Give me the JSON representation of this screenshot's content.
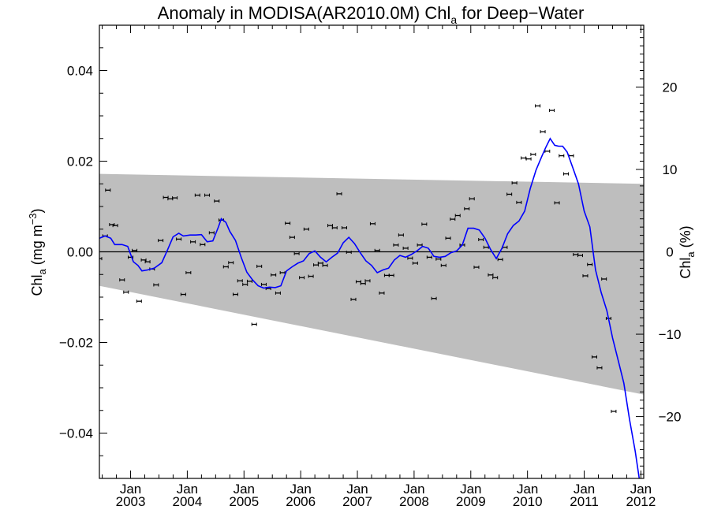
{
  "chart_data": {
    "type": "line",
    "title_main": "Anomaly in MODISA(AR2010.0M) Chl",
    "title_sub": "a",
    "title_rest": " for Deep−Water",
    "ylabel_left_main": "Chl",
    "ylabel_left_sub": "a",
    "ylabel_left_rest": " (mg m",
    "ylabel_left_sup": "−3",
    "ylabel_left_close": ")",
    "ylabel_right_main": "Chl",
    "ylabel_right_sub": "a",
    "ylabel_right_rest": " (%)",
    "xlim": [
      2002.45,
      2012.05
    ],
    "ylim_left": [
      -0.05,
      0.05
    ],
    "ylim_right": [
      -27.5,
      27.5
    ],
    "yticks_left": [
      {
        "value": 0.04,
        "label": "0.04"
      },
      {
        "value": 0.02,
        "label": "0.02"
      },
      {
        "value": 0.0,
        "label": "0.00"
      },
      {
        "value": -0.02,
        "label": "−0.02"
      },
      {
        "value": -0.04,
        "label": "−0.04"
      }
    ],
    "yticks_right": [
      {
        "value": 20,
        "label": "20"
      },
      {
        "value": 10,
        "label": "10"
      },
      {
        "value": 0,
        "label": "0"
      },
      {
        "value": -10,
        "label": "−10"
      },
      {
        "value": -20,
        "label": "−20"
      }
    ],
    "xticks": [
      {
        "value": 2003.0,
        "month": "Jan",
        "year": "2003"
      },
      {
        "value": 2004.0,
        "month": "Jan",
        "year": "2004"
      },
      {
        "value": 2005.0,
        "month": "Jan",
        "year": "2005"
      },
      {
        "value": 2006.0,
        "month": "Jan",
        "year": "2006"
      },
      {
        "value": 2007.0,
        "month": "Jan",
        "year": "2007"
      },
      {
        "value": 2008.0,
        "month": "Jan",
        "year": "2008"
      },
      {
        "value": 2009.0,
        "month": "Jan",
        "year": "2009"
      },
      {
        "value": 2010.0,
        "month": "Jan",
        "year": "2010"
      },
      {
        "value": 2011.0,
        "month": "Jan",
        "year": "2011"
      },
      {
        "value": 2012.0,
        "month": "Jan",
        "year": "2012"
      }
    ],
    "shaded_band": {
      "color": "#bebebe",
      "upper": [
        [
          2002.45,
          0.0172
        ],
        [
          2012.05,
          0.015
        ]
      ],
      "lower": [
        [
          2002.45,
          -0.0075
        ],
        [
          2012.05,
          -0.0315
        ]
      ]
    },
    "zero_line": 0,
    "series": [
      {
        "type": "line",
        "color": "#0000ff",
        "points": [
          [
            2002.45,
            0.003
          ],
          [
            2002.55,
            0.0035
          ],
          [
            2002.65,
            0.003
          ],
          [
            2002.72,
            0.0016
          ],
          [
            2002.85,
            0.0016
          ],
          [
            2002.95,
            0.0012
          ],
          [
            2003.05,
            -0.0022
          ],
          [
            2003.13,
            -0.003
          ],
          [
            2003.2,
            -0.0042
          ],
          [
            2003.3,
            -0.004
          ],
          [
            2003.42,
            -0.0036
          ],
          [
            2003.55,
            -0.0024
          ],
          [
            2003.65,
            0.0004
          ],
          [
            2003.75,
            0.0033
          ],
          [
            2003.85,
            0.0041
          ],
          [
            2003.93,
            0.0035
          ],
          [
            2004.05,
            0.0037
          ],
          [
            2004.15,
            0.0037
          ],
          [
            2004.25,
            0.0038
          ],
          [
            2004.35,
            0.0022
          ],
          [
            2004.45,
            0.0024
          ],
          [
            2004.55,
            0.0055
          ],
          [
            2004.6,
            0.0073
          ],
          [
            2004.68,
            0.0065
          ],
          [
            2004.75,
            0.0045
          ],
          [
            2004.85,
            0.0025
          ],
          [
            2004.95,
            -0.0012
          ],
          [
            2005.05,
            -0.0045
          ],
          [
            2005.15,
            -0.0062
          ],
          [
            2005.25,
            -0.0075
          ],
          [
            2005.35,
            -0.008
          ],
          [
            2005.45,
            -0.0078
          ],
          [
            2005.55,
            -0.0079
          ],
          [
            2005.65,
            -0.0075
          ],
          [
            2005.75,
            -0.0042
          ],
          [
            2005.85,
            -0.0033
          ],
          [
            2005.95,
            -0.0025
          ],
          [
            2006.05,
            -0.002
          ],
          [
            2006.15,
            -0.0004
          ],
          [
            2006.25,
            0.0002
          ],
          [
            2006.35,
            -0.0012
          ],
          [
            2006.45,
            -0.0022
          ],
          [
            2006.55,
            -0.0012
          ],
          [
            2006.65,
            -0.0003
          ],
          [
            2006.75,
            0.002
          ],
          [
            2006.85,
            0.0032
          ],
          [
            2006.95,
            0.0018
          ],
          [
            2007.05,
            -0.0002
          ],
          [
            2007.15,
            -0.002
          ],
          [
            2007.25,
            -0.003
          ],
          [
            2007.35,
            -0.0046
          ],
          [
            2007.45,
            -0.004
          ],
          [
            2007.55,
            -0.0036
          ],
          [
            2007.65,
            -0.0018
          ],
          [
            2007.75,
            -0.0008
          ],
          [
            2007.85,
            -0.0012
          ],
          [
            2007.95,
            -0.0006
          ],
          [
            2008.05,
            0.0002
          ],
          [
            2008.15,
            0.0012
          ],
          [
            2008.25,
            0.0008
          ],
          [
            2008.35,
            -0.001
          ],
          [
            2008.45,
            -0.0012
          ],
          [
            2008.55,
            -0.001
          ],
          [
            2008.65,
            -0.0002
          ],
          [
            2008.75,
            0.0002
          ],
          [
            2008.85,
            0.0015
          ],
          [
            2008.95,
            0.0052
          ],
          [
            2009.05,
            0.0052
          ],
          [
            2009.15,
            0.0048
          ],
          [
            2009.25,
            0.003
          ],
          [
            2009.35,
            0.0005
          ],
          [
            2009.45,
            -0.0015
          ],
          [
            2009.55,
            0.0008
          ],
          [
            2009.65,
            0.004
          ],
          [
            2009.75,
            0.0058
          ],
          [
            2009.85,
            0.0068
          ],
          [
            2009.95,
            0.009
          ],
          [
            2010.05,
            0.014
          ],
          [
            2010.15,
            0.018
          ],
          [
            2010.25,
            0.021
          ],
          [
            2010.32,
            0.023
          ],
          [
            2010.4,
            0.025
          ],
          [
            2010.48,
            0.0235
          ],
          [
            2010.55,
            0.0233
          ],
          [
            2010.62,
            0.0233
          ],
          [
            2010.7,
            0.022
          ],
          [
            2010.8,
            0.0185
          ],
          [
            2010.9,
            0.015
          ],
          [
            2011.0,
            0.009
          ],
          [
            2011.1,
            0.0055
          ],
          [
            2011.2,
            -0.004
          ],
          [
            2011.3,
            -0.009
          ],
          [
            2011.4,
            -0.013
          ],
          [
            2011.5,
            -0.019
          ],
          [
            2011.6,
            -0.024
          ],
          [
            2011.7,
            -0.029
          ],
          [
            2011.8,
            -0.037
          ],
          [
            2011.9,
            -0.044
          ],
          [
            2011.97,
            -0.05
          ]
        ]
      }
    ],
    "markers": [
      [
        2002.45,
        -0.0015
      ],
      [
        2002.55,
        0.0035
      ],
      [
        2002.6,
        0.0136
      ],
      [
        2002.67,
        0.006
      ],
      [
        2002.73,
        0.0058
      ],
      [
        2002.85,
        -0.0062
      ],
      [
        2002.92,
        -0.0089
      ],
      [
        2003.0,
        -0.0012
      ],
      [
        2003.07,
        0.0003
      ],
      [
        2003.15,
        -0.0109
      ],
      [
        2003.23,
        -0.0018
      ],
      [
        2003.3,
        -0.0022
      ],
      [
        2003.38,
        -0.0038
      ],
      [
        2003.45,
        -0.0073
      ],
      [
        2003.53,
        0.0025
      ],
      [
        2003.62,
        0.012
      ],
      [
        2003.7,
        0.0117
      ],
      [
        2003.78,
        0.0119
      ],
      [
        2003.85,
        0.0028
      ],
      [
        2003.93,
        -0.0094
      ],
      [
        2004.02,
        -0.0046
      ],
      [
        2004.1,
        0.0022
      ],
      [
        2004.18,
        0.0125
      ],
      [
        2004.27,
        0.0016
      ],
      [
        2004.35,
        0.0125
      ],
      [
        2004.43,
        0.0042
      ],
      [
        2004.52,
        0.0112
      ],
      [
        2004.6,
        0.007
      ],
      [
        2004.68,
        -0.0033
      ],
      [
        2004.77,
        -0.0024
      ],
      [
        2004.85,
        -0.0094
      ],
      [
        2004.93,
        -0.0064
      ],
      [
        2005.02,
        -0.0072
      ],
      [
        2005.1,
        -0.0065
      ],
      [
        2005.18,
        -0.016
      ],
      [
        2005.27,
        -0.0032
      ],
      [
        2005.35,
        -0.0072
      ],
      [
        2005.43,
        -0.0081
      ],
      [
        2005.52,
        -0.0051
      ],
      [
        2005.6,
        -0.0091
      ],
      [
        2005.68,
        -0.0046
      ],
      [
        2005.77,
        0.0063
      ],
      [
        2005.85,
        0.0032
      ],
      [
        2005.93,
        -0.0004
      ],
      [
        2006.02,
        -0.0057
      ],
      [
        2006.1,
        0.005
      ],
      [
        2006.18,
        -0.0054
      ],
      [
        2006.27,
        -0.0029
      ],
      [
        2006.35,
        -0.0025
      ],
      [
        2006.43,
        -0.003
      ],
      [
        2006.52,
        0.0058
      ],
      [
        2006.6,
        0.0053
      ],
      [
        2006.68,
        0.0128
      ],
      [
        2006.77,
        0.0053
      ],
      [
        2006.85,
        -0.0001
      ],
      [
        2006.93,
        -0.0105
      ],
      [
        2007.02,
        -0.0066
      ],
      [
        2007.1,
        -0.007
      ],
      [
        2007.18,
        -0.0064
      ],
      [
        2007.27,
        0.0062
      ],
      [
        2007.35,
        0.0003
      ],
      [
        2007.43,
        -0.0091
      ],
      [
        2007.52,
        -0.0052
      ],
      [
        2007.6,
        -0.0052
      ],
      [
        2007.68,
        0.0015
      ],
      [
        2007.77,
        0.0037
      ],
      [
        2007.85,
        0.0008
      ],
      [
        2007.93,
        -0.0014
      ],
      [
        2008.02,
        -0.0025
      ],
      [
        2008.1,
        0.0015
      ],
      [
        2008.18,
        0.0061
      ],
      [
        2008.27,
        -0.0012
      ],
      [
        2008.35,
        -0.0103
      ],
      [
        2008.43,
        -0.0016
      ],
      [
        2008.52,
        -0.003
      ],
      [
        2008.6,
        0.003
      ],
      [
        2008.68,
        0.0072
      ],
      [
        2008.77,
        0.008
      ],
      [
        2008.85,
        0.0015
      ],
      [
        2008.93,
        0.0095
      ],
      [
        2009.02,
        0.0117
      ],
      [
        2009.1,
        -0.0034
      ],
      [
        2009.18,
        0.0027
      ],
      [
        2009.27,
        0.001
      ],
      [
        2009.35,
        -0.0051
      ],
      [
        2009.43,
        -0.0057
      ],
      [
        2009.52,
        -0.0017
      ],
      [
        2009.6,
        0.001
      ],
      [
        2009.68,
        0.0127
      ],
      [
        2009.77,
        0.0152
      ],
      [
        2009.85,
        0.0109
      ],
      [
        2009.93,
        0.0207
      ],
      [
        2010.02,
        0.0205
      ],
      [
        2010.1,
        0.0215
      ],
      [
        2010.18,
        0.0322
      ],
      [
        2010.27,
        0.0265
      ],
      [
        2010.35,
        0.0222
      ],
      [
        2010.43,
        0.0312
      ],
      [
        2010.52,
        0.0108
      ],
      [
        2010.6,
        0.0212
      ],
      [
        2010.68,
        0.0172
      ],
      [
        2010.77,
        0.0212
      ],
      [
        2010.85,
        -0.0006
      ],
      [
        2010.93,
        -0.0008
      ],
      [
        2011.02,
        -0.0053
      ],
      [
        2011.1,
        -0.0028
      ],
      [
        2011.18,
        -0.0232
      ],
      [
        2011.27,
        -0.0256
      ],
      [
        2011.35,
        -0.006
      ],
      [
        2011.43,
        -0.0147
      ],
      [
        2011.52,
        -0.0352
      ]
    ]
  }
}
